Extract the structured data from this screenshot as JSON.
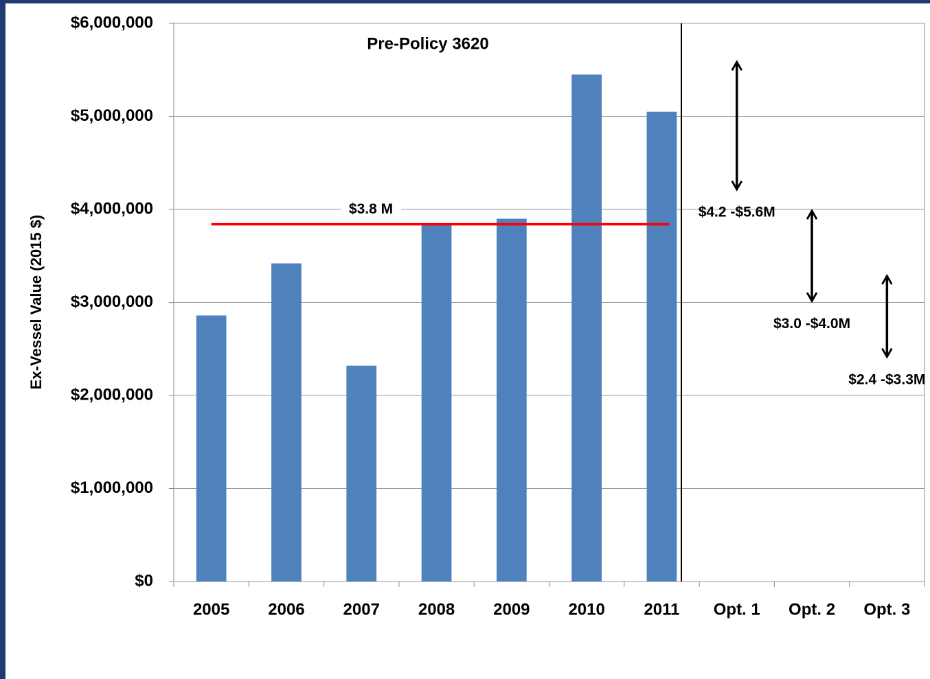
{
  "chart_data": {
    "type": "bar",
    "categories": [
      "2005",
      "2006",
      "2007",
      "2008",
      "2009",
      "2010",
      "2011",
      "Opt. 1",
      "Opt. 2",
      "Opt. 3"
    ],
    "values": [
      2860000,
      3420000,
      2320000,
      3850000,
      3900000,
      5450000,
      5050000,
      null,
      null,
      null
    ],
    "color": "#4f81bd",
    "ylim": [
      0,
      6000000
    ],
    "yticks": [
      {
        "value": 0,
        "label": "$0"
      },
      {
        "value": 1000000,
        "label": "$1,000,000"
      },
      {
        "value": 2000000,
        "label": "$2,000,000"
      },
      {
        "value": 3000000,
        "label": "$3,000,000"
      },
      {
        "value": 4000000,
        "label": "$4,000,000"
      },
      {
        "value": 5000000,
        "label": "$5,000,000"
      },
      {
        "value": 6000000,
        "label": "$6,000,000"
      }
    ],
    "grid": true,
    "y_label": "Ex-Vessel Value  (2015 $)",
    "annotation": "Pre-Policy 3620",
    "reference_line": {
      "value": 3840000,
      "label": "$3.8 M",
      "color": "#ff0000"
    },
    "ranges": [
      {
        "category": "Opt. 1",
        "low": 4200000,
        "high": 5600000,
        "label": "$4.2 -$5.6M"
      },
      {
        "category": "Opt. 2",
        "low": 3000000,
        "high": 4000000,
        "label": "$3.0 -$4.0M"
      },
      {
        "category": "Opt. 3",
        "low": 2400000,
        "high": 3300000,
        "label": "$2.4 -$3.3M"
      }
    ]
  }
}
